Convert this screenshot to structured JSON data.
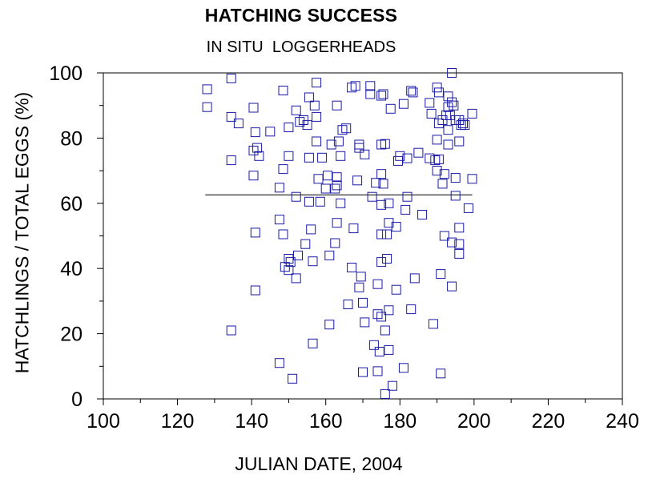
{
  "chart_data": {
    "type": "scatter",
    "title": "HATCHING SUCCESS",
    "subtitle": "IN SITU  LOGGERHEADS",
    "xlabel": "JULIAN DATE, 2004",
    "ylabel": "HATCHLINGS / TOTAL EGGS (%)",
    "xlim": [
      100,
      240
    ],
    "ylim": [
      0,
      100
    ],
    "x_ticks": [
      "100",
      "120",
      "140",
      "160",
      "180",
      "200",
      "220",
      "240"
    ],
    "y_ticks": [
      "0",
      "20",
      "40",
      "60",
      "80",
      "100"
    ],
    "grid": false,
    "legend": "none",
    "marker": "open-square",
    "marker_color": "#1a1aa6",
    "reference_line": {
      "y": 62.6,
      "x_range": [
        127.5,
        199.5
      ]
    },
    "points": [
      [
        128,
        95.0
      ],
      [
        128,
        89.5
      ],
      [
        134.5,
        98.3
      ],
      [
        134.5,
        86.5
      ],
      [
        134.5,
        73.2
      ],
      [
        134.5,
        21.0
      ],
      [
        136.5,
        84.5
      ],
      [
        140.5,
        89.3
      ],
      [
        140.5,
        76.2
      ],
      [
        140.5,
        68.5
      ],
      [
        141,
        81.8
      ],
      [
        141,
        51.0
      ],
      [
        141,
        33.3
      ],
      [
        141.5,
        77.0
      ],
      [
        142,
        74.5
      ],
      [
        145,
        82.0
      ],
      [
        147.5,
        64.8
      ],
      [
        147.5,
        55.0
      ],
      [
        147.5,
        11.0
      ],
      [
        148.5,
        94.6
      ],
      [
        148.5,
        70.5
      ],
      [
        148.5,
        50.5
      ],
      [
        149,
        40.5
      ],
      [
        150,
        83.3
      ],
      [
        150,
        74.5
      ],
      [
        150,
        43.0
      ],
      [
        150,
        39.5
      ],
      [
        150.5,
        42.0
      ],
      [
        151,
        6.2
      ],
      [
        152,
        88.5
      ],
      [
        152,
        37.0
      ],
      [
        152,
        62.0
      ],
      [
        152.5,
        44.0
      ],
      [
        153,
        85.0
      ],
      [
        154,
        85.5
      ],
      [
        154.5,
        47.5
      ],
      [
        155,
        84.0
      ],
      [
        155.5,
        92.5
      ],
      [
        155.5,
        74.0
      ],
      [
        155.5,
        60.5
      ],
      [
        156,
        52.0
      ],
      [
        156.5,
        17.0
      ],
      [
        156.5,
        42.2
      ],
      [
        157,
        90.0
      ],
      [
        157.5,
        97.0
      ],
      [
        157.5,
        86.5
      ],
      [
        157.5,
        79.0
      ],
      [
        158,
        67.5
      ],
      [
        158.5,
        60.5
      ],
      [
        159,
        74.0
      ],
      [
        160,
        64.5
      ],
      [
        160.5,
        68.5
      ],
      [
        161,
        44.0
      ],
      [
        161,
        22.8
      ],
      [
        161.5,
        78.0
      ],
      [
        162.5,
        64.5
      ],
      [
        162.5,
        47.8
      ],
      [
        163,
        90.0
      ],
      [
        163,
        68.0
      ],
      [
        163,
        65.5
      ],
      [
        163,
        54.0
      ],
      [
        163.5,
        79.0
      ],
      [
        164,
        60.0
      ],
      [
        164,
        74.5
      ],
      [
        164.5,
        82.5
      ],
      [
        165.5,
        83.0
      ],
      [
        166,
        29.0
      ],
      [
        167,
        95.5
      ],
      [
        167,
        40.3
      ],
      [
        167.5,
        52.3
      ],
      [
        168,
        96.0
      ],
      [
        168.5,
        67.0
      ],
      [
        169,
        78.0
      ],
      [
        169,
        77.0
      ],
      [
        169,
        34.2
      ],
      [
        169.5,
        37.5
      ],
      [
        170,
        8.2
      ],
      [
        170,
        29.5
      ],
      [
        170.5,
        75.0
      ],
      [
        170.5,
        23.5
      ],
      [
        172,
        96.0
      ],
      [
        172,
        93.5
      ],
      [
        172.5,
        62.0
      ],
      [
        173,
        16.5
      ],
      [
        173.5,
        66.3
      ],
      [
        174,
        35.2
      ],
      [
        174,
        8.5
      ],
      [
        174,
        26.0
      ],
      [
        174.5,
        14.5
      ],
      [
        175,
        93.0
      ],
      [
        175,
        78.0
      ],
      [
        175,
        69.0
      ],
      [
        175,
        59.5
      ],
      [
        175,
        50.5
      ],
      [
        175,
        42.0
      ],
      [
        175,
        25.2
      ],
      [
        175.5,
        66.0
      ],
      [
        175.5,
        93.5
      ],
      [
        176,
        78.2
      ],
      [
        176,
        21.0
      ],
      [
        176,
        1.5
      ],
      [
        176.5,
        43.0
      ],
      [
        176.5,
        50.5
      ],
      [
        177,
        54.0
      ],
      [
        177,
        60.0
      ],
      [
        177,
        15.0
      ],
      [
        177,
        27.2
      ],
      [
        177.5,
        89.0
      ],
      [
        178,
        4.0
      ],
      [
        179,
        33.5
      ],
      [
        179,
        52.8
      ],
      [
        179.5,
        73.0
      ],
      [
        180,
        74.5
      ],
      [
        181,
        90.5
      ],
      [
        181,
        9.5
      ],
      [
        181.5,
        58.0
      ],
      [
        182,
        73.8
      ],
      [
        182,
        62.0
      ],
      [
        183,
        94.5
      ],
      [
        183,
        27.5
      ],
      [
        183.5,
        94.0
      ],
      [
        184,
        37.0
      ],
      [
        185,
        75.5
      ],
      [
        186,
        56.5
      ],
      [
        188,
        90.8
      ],
      [
        188,
        73.8
      ],
      [
        188.5,
        87.5
      ],
      [
        189,
        23.0
      ],
      [
        189.5,
        73.2
      ],
      [
        190,
        79.5
      ],
      [
        190,
        70.0
      ],
      [
        190,
        95.5
      ],
      [
        190.5,
        84.5
      ],
      [
        190.5,
        94.0
      ],
      [
        190.5,
        73.5
      ],
      [
        191,
        38.3
      ],
      [
        191,
        7.8
      ],
      [
        191.5,
        85.5
      ],
      [
        191.5,
        66.0
      ],
      [
        192,
        69.0
      ],
      [
        192,
        50.0
      ],
      [
        192.5,
        87.0
      ],
      [
        193,
        92.8
      ],
      [
        193,
        89.5
      ],
      [
        193,
        82.5
      ],
      [
        193,
        78.0
      ],
      [
        193.5,
        87.0
      ],
      [
        194,
        91.0
      ],
      [
        194,
        100.0
      ],
      [
        194,
        48.0
      ],
      [
        194,
        34.5
      ],
      [
        194.5,
        90.0
      ],
      [
        195,
        85.5
      ],
      [
        195,
        67.8
      ],
      [
        195,
        62.3
      ],
      [
        196,
        85.5
      ],
      [
        196,
        79.0
      ],
      [
        196,
        52.5
      ],
      [
        196,
        47.5
      ],
      [
        196,
        44.5
      ],
      [
        196.5,
        84.0
      ],
      [
        197,
        84.5
      ],
      [
        197.5,
        84.0
      ],
      [
        198.5,
        58.5
      ],
      [
        199.5,
        87.5
      ],
      [
        199.5,
        67.5
      ]
    ]
  }
}
